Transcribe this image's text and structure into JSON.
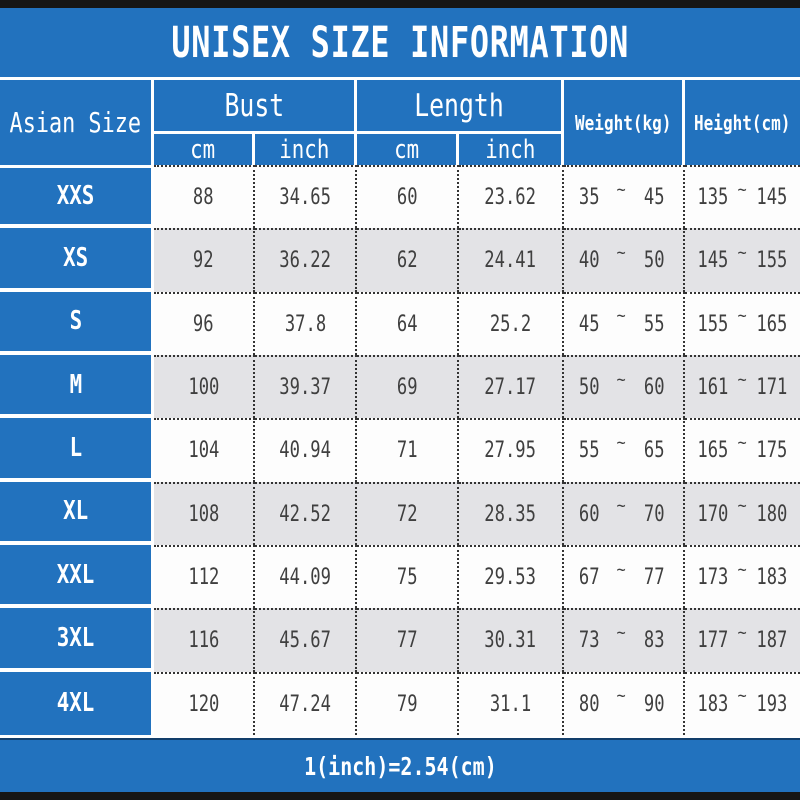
{
  "title": "UNISEX SIZE INFORMATION",
  "colors": {
    "header_blue": "#2272BE",
    "alt_row_gray": "#E3E3E6",
    "frame_black": "#161616",
    "data_text": "#3F3F3F"
  },
  "table": {
    "corner": "Asian Size",
    "groups": {
      "bust": "Bust",
      "length": "Length"
    },
    "units": {
      "cm": "cm",
      "inch": "inch"
    },
    "weight_header": "Weight(kg)",
    "height_header": "Height(cm)",
    "tilde": "~",
    "rows": [
      {
        "size": "XXS",
        "bust_cm": "88",
        "bust_inch": "34.65",
        "length_cm": "60",
        "length_inch": "23.62",
        "weight_min": "35",
        "weight_max": "45",
        "height_min": "135",
        "height_max": "145"
      },
      {
        "size": "XS",
        "bust_cm": "92",
        "bust_inch": "36.22",
        "length_cm": "62",
        "length_inch": "24.41",
        "weight_min": "40",
        "weight_max": "50",
        "height_min": "145",
        "height_max": "155"
      },
      {
        "size": "S",
        "bust_cm": "96",
        "bust_inch": "37.8",
        "length_cm": "64",
        "length_inch": "25.2",
        "weight_min": "45",
        "weight_max": "55",
        "height_min": "155",
        "height_max": "165"
      },
      {
        "size": "M",
        "bust_cm": "100",
        "bust_inch": "39.37",
        "length_cm": "69",
        "length_inch": "27.17",
        "weight_min": "50",
        "weight_max": "60",
        "height_min": "161",
        "height_max": "171"
      },
      {
        "size": "L",
        "bust_cm": "104",
        "bust_inch": "40.94",
        "length_cm": "71",
        "length_inch": "27.95",
        "weight_min": "55",
        "weight_max": "65",
        "height_min": "165",
        "height_max": "175"
      },
      {
        "size": "XL",
        "bust_cm": "108",
        "bust_inch": "42.52",
        "length_cm": "72",
        "length_inch": "28.35",
        "weight_min": "60",
        "weight_max": "70",
        "height_min": "170",
        "height_max": "180"
      },
      {
        "size": "XXL",
        "bust_cm": "112",
        "bust_inch": "44.09",
        "length_cm": "75",
        "length_inch": "29.53",
        "weight_min": "67",
        "weight_max": "77",
        "height_min": "173",
        "height_max": "183"
      },
      {
        "size": "3XL",
        "bust_cm": "116",
        "bust_inch": "45.67",
        "length_cm": "77",
        "length_inch": "30.31",
        "weight_min": "73",
        "weight_max": "83",
        "height_min": "177",
        "height_max": "187"
      },
      {
        "size": "4XL",
        "bust_cm": "120",
        "bust_inch": "47.24",
        "length_cm": "79",
        "length_inch": "31.1",
        "weight_min": "80",
        "weight_max": "90",
        "height_min": "183",
        "height_max": "193"
      }
    ]
  },
  "footer": {
    "note": "1(inch)=2.54(cm)"
  },
  "chart_data": {
    "type": "table",
    "title": "UNISEX SIZE INFORMATION",
    "columns": [
      "Asian Size",
      "Bust cm",
      "Bust inch",
      "Length cm",
      "Length inch",
      "Weight(kg)",
      "Height(cm)"
    ],
    "rows": [
      [
        "XXS",
        88,
        34.65,
        60,
        23.62,
        "35~45",
        "135~145"
      ],
      [
        "XS",
        92,
        36.22,
        62,
        24.41,
        "40~50",
        "145~155"
      ],
      [
        "S",
        96,
        37.8,
        64,
        25.2,
        "45~55",
        "155~165"
      ],
      [
        "M",
        100,
        39.37,
        69,
        27.17,
        "50~60",
        "161~171"
      ],
      [
        "L",
        104,
        40.94,
        71,
        27.95,
        "55~65",
        "165~175"
      ],
      [
        "XL",
        108,
        42.52,
        72,
        28.35,
        "60~70",
        "170~180"
      ],
      [
        "XXL",
        112,
        44.09,
        75,
        29.53,
        "67~77",
        "173~183"
      ],
      [
        "3XL",
        116,
        45.67,
        77,
        30.31,
        "73~83",
        "177~187"
      ],
      [
        "4XL",
        120,
        47.24,
        79,
        31.1,
        "80~90",
        "183~193"
      ]
    ],
    "footnote": "1(inch)=2.54(cm)",
    "layout": "size chart table; blue header band, alternating white/gray data rows, dotted cell borders"
  }
}
